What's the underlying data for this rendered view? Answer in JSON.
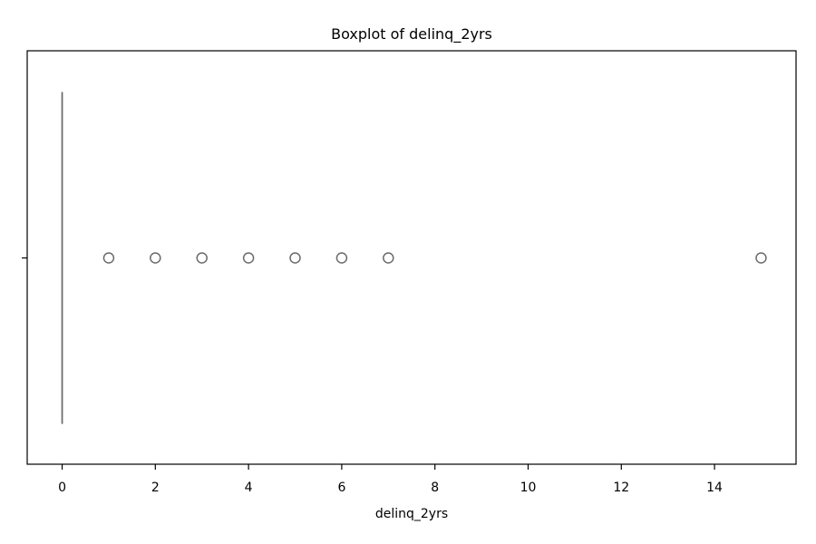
{
  "chart_data": {
    "type": "boxplot",
    "title": "Boxplot of delinq_2yrs",
    "xlabel": "delinq_2yrs",
    "ylabel": "",
    "orientation": "horizontal",
    "xlim": [
      -0.75,
      15.75
    ],
    "xticks": [
      0,
      2,
      4,
      6,
      8,
      10,
      12,
      14
    ],
    "xtick_labels": [
      "0",
      "2",
      "4",
      "6",
      "8",
      "10",
      "12",
      "14"
    ],
    "grid": false,
    "box": {
      "min": 0,
      "q1": 0,
      "median": 0,
      "q3": 0,
      "max": 0
    },
    "outliers": [
      1,
      2,
      3,
      4,
      5,
      6,
      7,
      15
    ],
    "colors": {
      "box": "#6b6b6b",
      "axes": "#000000",
      "background": "#ffffff"
    }
  }
}
